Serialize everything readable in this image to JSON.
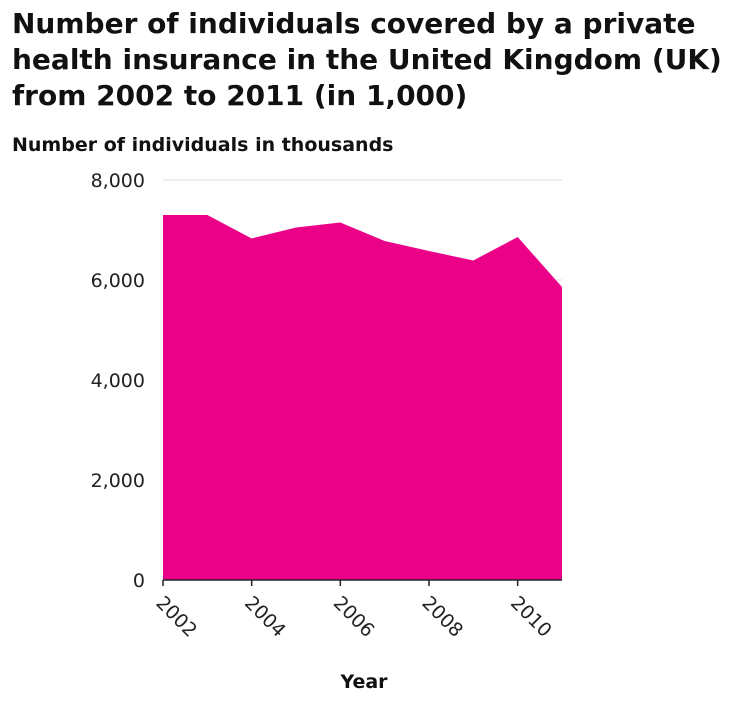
{
  "chart_data": {
    "type": "area",
    "title": "Number of individuals covered by a private health insurance in the United Kingdom (UK) from 2002 to 2011 (in 1,000)",
    "ylabel": "Number of individuals in thousands",
    "xlabel": "Year",
    "x": [
      2002,
      2003,
      2004,
      2005,
      2006,
      2007,
      2008,
      2009,
      2010,
      2011
    ],
    "series": [
      {
        "values": [
          7300,
          7300,
          6830,
          7050,
          7150,
          6780,
          6580,
          6390,
          6860,
          5860
        ]
      }
    ],
    "xlim": [
      2002,
      2011
    ],
    "ylim": [
      0,
      8000
    ],
    "x_ticks": [
      2002,
      2004,
      2006,
      2008,
      2010
    ],
    "x_tick_labels": [
      "2002",
      "2004",
      "2006",
      "2008",
      "2010"
    ],
    "y_ticks": [
      0,
      2000,
      4000,
      6000,
      8000
    ],
    "y_tick_labels": [
      "0",
      "2,000",
      "4,000",
      "6,000",
      "8,000"
    ],
    "grid": "horizontal",
    "fill_color": "#ea0188",
    "axis_color": "#222222",
    "grid_color": "#dddddd"
  }
}
